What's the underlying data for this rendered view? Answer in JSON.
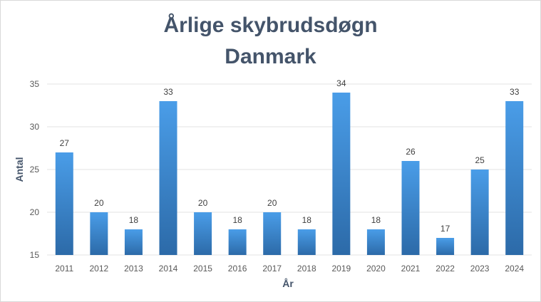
{
  "chart_data": {
    "type": "bar",
    "title_line1": "Årlige skybrudsdøgn",
    "title_line2": "Danmark",
    "xlabel": "År",
    "ylabel": "Antal",
    "categories": [
      "2011",
      "2012",
      "2013",
      "2014",
      "2015",
      "2016",
      "2017",
      "2018",
      "2019",
      "2020",
      "2021",
      "2022",
      "2023",
      "2024"
    ],
    "values": [
      27,
      20,
      18,
      33,
      20,
      18,
      20,
      18,
      34,
      18,
      26,
      17,
      25,
      33
    ],
    "ylim": [
      15,
      35
    ],
    "yticks": [
      15,
      20,
      25,
      30,
      35
    ],
    "grid": true,
    "legend": "none",
    "bar_color_top": "#4a9de8",
    "bar_color_bottom": "#2c6aa8",
    "gridline_color": "#e3e3e3",
    "title_color": "#44546a"
  }
}
